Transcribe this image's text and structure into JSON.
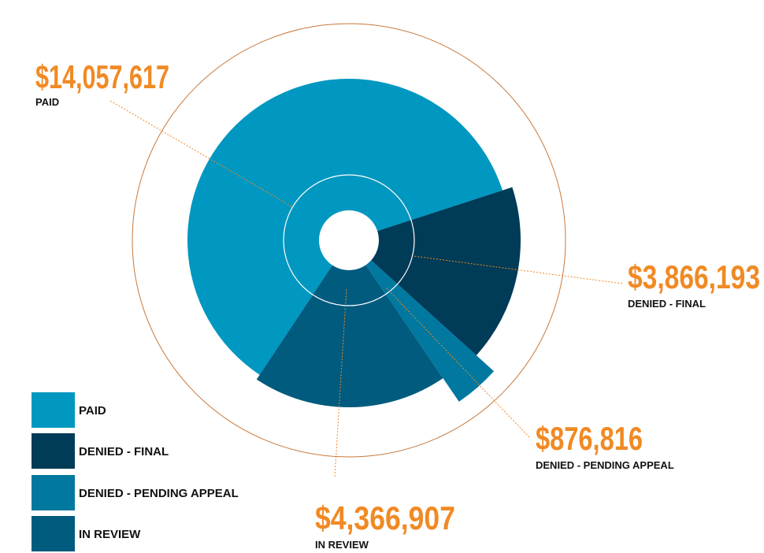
{
  "chart_data": {
    "type": "polar-area",
    "categories": [
      "PAID",
      "DENIED - FINAL",
      "DENIED - PENDING APPEAL",
      "IN REVIEW"
    ],
    "values": [
      14057617,
      3866193,
      876816,
      4366907
    ],
    "value_labels": [
      "$14,057,617",
      "$3,866,193",
      "$876,816",
      "$4,366,907"
    ],
    "colors": [
      "#0097c0",
      "#003b57",
      "#00789f",
      "#005b7e"
    ],
    "label_color": "#f08a24"
  }
}
